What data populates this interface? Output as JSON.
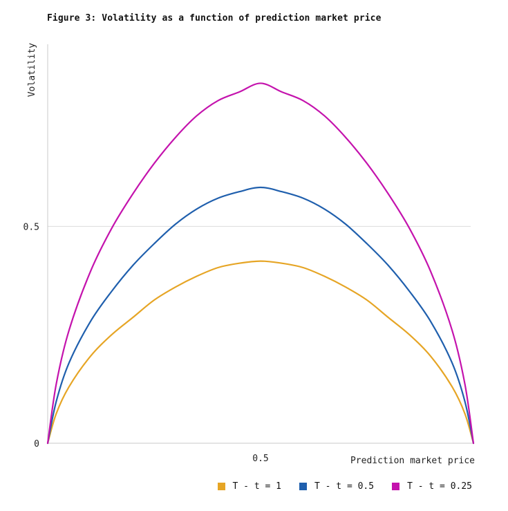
{
  "chart_data": {
    "type": "line",
    "title": "Figure 3: Volatility as a function of prediction market price",
    "xlabel": "Prediction market price",
    "ylabel": "Volatility",
    "xlim": [
      0,
      1
    ],
    "ylim": [
      0,
      0.92
    ],
    "x_ticks": [
      {
        "value": 0.5,
        "label": "0.5"
      }
    ],
    "y_ticks": [
      {
        "value": 0,
        "label": "0"
      },
      {
        "value": 0.5,
        "label": "0.5"
      }
    ],
    "grid": "horizontal",
    "legend_position": "bottom-right",
    "x": [
      0,
      0.02,
      0.05,
      0.1,
      0.15,
      0.2,
      0.25,
      0.3,
      0.35,
      0.4,
      0.45,
      0.5,
      0.55,
      0.6,
      0.65,
      0.7,
      0.75,
      0.8,
      0.85,
      0.9,
      0.95,
      0.98,
      1
    ],
    "series": [
      {
        "name": "T - t = 1",
        "color": "#e6a525",
        "values": [
          0,
          0.068,
          0.13,
          0.2,
          0.25,
          0.29,
          0.33,
          0.36,
          0.385,
          0.405,
          0.415,
          0.42,
          0.415,
          0.405,
          0.385,
          0.36,
          0.33,
          0.29,
          0.25,
          0.2,
          0.13,
          0.068,
          0
        ]
      },
      {
        "name": "T - t = 0.5",
        "color": "#1f5fad",
        "values": [
          0,
          0.096,
          0.185,
          0.28,
          0.35,
          0.41,
          0.46,
          0.505,
          0.54,
          0.565,
          0.58,
          0.59,
          0.58,
          0.565,
          0.54,
          0.505,
          0.46,
          0.41,
          0.35,
          0.28,
          0.185,
          0.096,
          0
        ]
      },
      {
        "name": "T - t = 0.25",
        "color": "#c413ad",
        "values": [
          0,
          0.136,
          0.26,
          0.395,
          0.495,
          0.575,
          0.645,
          0.705,
          0.755,
          0.79,
          0.81,
          0.83,
          0.81,
          0.79,
          0.755,
          0.705,
          0.645,
          0.575,
          0.495,
          0.395,
          0.26,
          0.136,
          0
        ]
      }
    ]
  }
}
